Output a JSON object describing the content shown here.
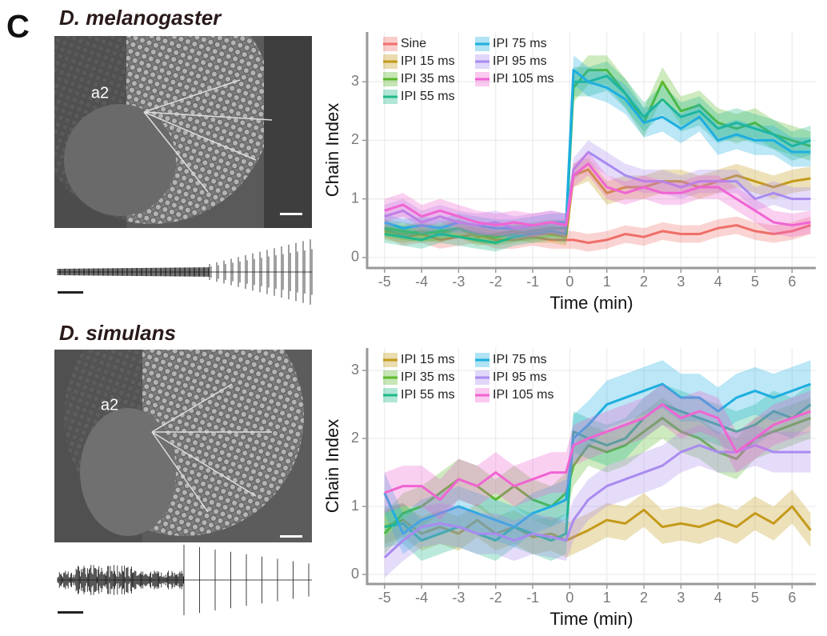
{
  "panel_label": "C",
  "specimens": [
    {
      "name": "D. melanogaster",
      "antenna_label": "a2"
    },
    {
      "name": "D. simulans",
      "antenna_label": "a2"
    }
  ],
  "chart_data": [
    {
      "type": "line",
      "xlabel": "Time (min)",
      "ylabel": "Chain Index",
      "grid": true,
      "legend": "top-left",
      "xlim": [
        -5.47,
        6.64
      ],
      "ylim": [
        -0.18,
        3.85
      ],
      "xticks": [
        -5,
        -4,
        -3,
        -2,
        -1,
        0,
        1,
        2,
        3,
        4,
        5,
        6
      ],
      "yticks": [
        0,
        1,
        2,
        3
      ],
      "x": [
        -5,
        -4.5,
        -4,
        -3.5,
        -3,
        -2.5,
        -2,
        -1.5,
        -1,
        -0.5,
        -0.1,
        0.1,
        0.5,
        1,
        1.5,
        2,
        2.5,
        3,
        3.5,
        4,
        4.5,
        5,
        5.5,
        6,
        6.5
      ],
      "series": [
        {
          "name": "Sine",
          "color": "#ef6f6a",
          "values": [
            0.5,
            0.35,
            0.4,
            0.3,
            0.35,
            0.4,
            0.3,
            0.3,
            0.35,
            0.3,
            0.3,
            0.3,
            0.25,
            0.3,
            0.4,
            0.35,
            0.45,
            0.4,
            0.4,
            0.5,
            0.55,
            0.45,
            0.4,
            0.45,
            0.55
          ],
          "errors": [
            0.15,
            0.15,
            0.15,
            0.15,
            0.15,
            0.15,
            0.15,
            0.15,
            0.15,
            0.15,
            0.15,
            0.15,
            0.15,
            0.15,
            0.15,
            0.15,
            0.15,
            0.15,
            0.15,
            0.15,
            0.15,
            0.15,
            0.15,
            0.15,
            0.15
          ]
        },
        {
          "name": "IPI 15 ms",
          "color": "#c49a1a",
          "values": [
            0.45,
            0.4,
            0.45,
            0.4,
            0.5,
            0.35,
            0.4,
            0.45,
            0.4,
            0.4,
            0.35,
            1.4,
            1.5,
            1.1,
            1.2,
            1.2,
            1.3,
            1.3,
            1.2,
            1.3,
            1.4,
            1.3,
            1.2,
            1.3,
            1.35
          ],
          "errors": [
            0.15,
            0.15,
            0.15,
            0.15,
            0.15,
            0.15,
            0.15,
            0.15,
            0.15,
            0.15,
            0.15,
            0.2,
            0.2,
            0.2,
            0.2,
            0.2,
            0.2,
            0.2,
            0.2,
            0.2,
            0.2,
            0.2,
            0.2,
            0.2,
            0.2
          ]
        },
        {
          "name": "IPI 35 ms",
          "color": "#5cb82a",
          "values": [
            0.5,
            0.45,
            0.4,
            0.45,
            0.5,
            0.4,
            0.35,
            0.4,
            0.45,
            0.5,
            0.5,
            2.9,
            3.2,
            3.2,
            2.8,
            2.3,
            3.0,
            2.5,
            2.6,
            2.3,
            2.2,
            2.3,
            2.1,
            2.0,
            1.9
          ],
          "errors": [
            0.15,
            0.15,
            0.15,
            0.15,
            0.15,
            0.15,
            0.15,
            0.15,
            0.15,
            0.15,
            0.15,
            0.25,
            0.25,
            0.25,
            0.25,
            0.25,
            0.25,
            0.25,
            0.25,
            0.25,
            0.25,
            0.25,
            0.25,
            0.25,
            0.25
          ]
        },
        {
          "name": "IPI 55 ms",
          "color": "#1fb88a",
          "values": [
            0.4,
            0.35,
            0.3,
            0.4,
            0.35,
            0.3,
            0.25,
            0.35,
            0.4,
            0.45,
            0.4,
            3.0,
            3.0,
            3.1,
            2.8,
            2.4,
            2.7,
            2.4,
            2.5,
            2.2,
            2.3,
            2.2,
            2.1,
            1.9,
            2.0
          ],
          "errors": [
            0.15,
            0.15,
            0.15,
            0.15,
            0.15,
            0.15,
            0.15,
            0.15,
            0.15,
            0.15,
            0.15,
            0.25,
            0.25,
            0.25,
            0.25,
            0.25,
            0.25,
            0.25,
            0.25,
            0.25,
            0.25,
            0.25,
            0.25,
            0.25,
            0.25
          ]
        },
        {
          "name": "IPI 75 ms",
          "color": "#1eaee0",
          "values": [
            0.6,
            0.5,
            0.55,
            0.5,
            0.6,
            0.55,
            0.5,
            0.5,
            0.55,
            0.6,
            0.6,
            3.2,
            3.0,
            2.9,
            2.7,
            2.3,
            2.4,
            2.2,
            2.4,
            2.0,
            2.1,
            2.0,
            2.0,
            1.8,
            1.8
          ],
          "errors": [
            0.15,
            0.15,
            0.15,
            0.15,
            0.15,
            0.15,
            0.15,
            0.15,
            0.15,
            0.15,
            0.15,
            0.25,
            0.25,
            0.25,
            0.25,
            0.25,
            0.25,
            0.25,
            0.25,
            0.25,
            0.25,
            0.25,
            0.25,
            0.25,
            0.25
          ]
        },
        {
          "name": "IPI 95 ms",
          "color": "#a98bf0",
          "values": [
            0.7,
            0.8,
            0.6,
            0.7,
            0.6,
            0.55,
            0.6,
            0.5,
            0.55,
            0.6,
            0.55,
            1.5,
            1.8,
            1.6,
            1.4,
            1.3,
            1.3,
            1.2,
            1.3,
            1.3,
            1.3,
            1.0,
            1.1,
            1.0,
            1.0
          ],
          "errors": [
            0.2,
            0.2,
            0.2,
            0.2,
            0.2,
            0.2,
            0.2,
            0.2,
            0.2,
            0.2,
            0.2,
            0.2,
            0.2,
            0.2,
            0.2,
            0.2,
            0.2,
            0.2,
            0.2,
            0.2,
            0.2,
            0.2,
            0.2,
            0.2,
            0.2
          ]
        },
        {
          "name": "IPI 105 ms",
          "color": "#f064d2",
          "values": [
            0.8,
            0.9,
            0.7,
            0.8,
            0.7,
            0.6,
            0.55,
            0.6,
            0.55,
            0.6,
            0.55,
            1.4,
            1.6,
            1.2,
            1.1,
            1.2,
            1.1,
            1.1,
            1.2,
            1.2,
            1.0,
            0.8,
            0.6,
            0.55,
            0.6
          ],
          "errors": [
            0.2,
            0.2,
            0.2,
            0.2,
            0.2,
            0.2,
            0.2,
            0.2,
            0.2,
            0.2,
            0.2,
            0.2,
            0.2,
            0.2,
            0.2,
            0.2,
            0.2,
            0.2,
            0.2,
            0.2,
            0.2,
            0.2,
            0.2,
            0.2,
            0.2
          ]
        }
      ]
    },
    {
      "type": "line",
      "xlabel": "Time (min)",
      "ylabel": "Chain Index",
      "grid": true,
      "legend": "top-left",
      "xlim": [
        -5.47,
        6.64
      ],
      "ylim": [
        -0.14,
        3.33
      ],
      "xticks": [
        -5,
        -4,
        -3,
        -2,
        -1,
        0,
        1,
        2,
        3,
        4,
        5,
        6
      ],
      "yticks": [
        0,
        1,
        2,
        3
      ],
      "x": [
        -5,
        -4.5,
        -4,
        -3.5,
        -3,
        -2.5,
        -2,
        -1.5,
        -1,
        -0.5,
        -0.1,
        0.1,
        0.5,
        1,
        1.5,
        2,
        2.5,
        3,
        3.5,
        4,
        4.5,
        5,
        5.5,
        6,
        6.5
      ],
      "series": [
        {
          "name": "IPI 15 ms",
          "color": "#c49a1a",
          "values": [
            0.7,
            0.8,
            0.6,
            0.7,
            0.6,
            0.8,
            0.6,
            0.7,
            0.55,
            0.6,
            0.5,
            0.55,
            0.65,
            0.8,
            0.75,
            0.95,
            0.7,
            0.75,
            0.7,
            0.8,
            0.7,
            0.9,
            0.75,
            1.0,
            0.65
          ],
          "errors": [
            0.25,
            0.25,
            0.25,
            0.25,
            0.25,
            0.25,
            0.25,
            0.25,
            0.25,
            0.25,
            0.25,
            0.25,
            0.25,
            0.25,
            0.25,
            0.25,
            0.25,
            0.25,
            0.25,
            0.25,
            0.25,
            0.25,
            0.25,
            0.25,
            0.25
          ]
        },
        {
          "name": "IPI 35 ms",
          "color": "#5cb82a",
          "values": [
            0.6,
            0.9,
            1.0,
            1.2,
            1.4,
            1.3,
            1.1,
            1.3,
            1.1,
            1.0,
            1.2,
            1.6,
            1.9,
            1.8,
            1.9,
            2.1,
            2.3,
            2.1,
            2.0,
            1.8,
            1.7,
            2.0,
            2.1,
            2.2,
            2.3
          ],
          "errors": [
            0.3,
            0.3,
            0.3,
            0.3,
            0.3,
            0.3,
            0.3,
            0.3,
            0.3,
            0.3,
            0.3,
            0.3,
            0.3,
            0.3,
            0.3,
            0.3,
            0.3,
            0.3,
            0.3,
            0.3,
            0.3,
            0.3,
            0.3,
            0.3,
            0.3
          ]
        },
        {
          "name": "IPI 55 ms",
          "color": "#1fb88a",
          "values": [
            0.7,
            0.75,
            0.5,
            0.6,
            0.7,
            0.6,
            0.5,
            0.7,
            0.6,
            0.5,
            0.6,
            2.1,
            2.0,
            1.9,
            2.0,
            2.3,
            2.5,
            2.4,
            2.3,
            2.2,
            2.1,
            2.2,
            2.4,
            2.3,
            2.5
          ],
          "errors": [
            0.3,
            0.3,
            0.3,
            0.3,
            0.3,
            0.3,
            0.3,
            0.3,
            0.3,
            0.3,
            0.3,
            0.3,
            0.3,
            0.3,
            0.3,
            0.3,
            0.3,
            0.3,
            0.3,
            0.3,
            0.3,
            0.3,
            0.3,
            0.3,
            0.3
          ]
        },
        {
          "name": "IPI 75 ms",
          "color": "#1eaee0",
          "values": [
            1.2,
            0.6,
            0.8,
            0.9,
            1.0,
            0.9,
            0.8,
            0.7,
            0.9,
            1.0,
            1.1,
            2.0,
            2.2,
            2.5,
            2.6,
            2.7,
            2.8,
            2.6,
            2.6,
            2.4,
            2.6,
            2.7,
            2.6,
            2.7,
            2.8
          ],
          "errors": [
            0.3,
            0.3,
            0.3,
            0.3,
            0.3,
            0.3,
            0.3,
            0.3,
            0.3,
            0.3,
            0.3,
            0.35,
            0.35,
            0.35,
            0.35,
            0.35,
            0.35,
            0.35,
            0.35,
            0.35,
            0.35,
            0.35,
            0.35,
            0.35,
            0.35
          ]
        },
        {
          "name": "IPI 95 ms",
          "color": "#a98bf0",
          "values": [
            0.25,
            0.5,
            0.7,
            0.75,
            0.7,
            0.6,
            0.6,
            0.5,
            0.6,
            0.55,
            0.5,
            0.8,
            1.1,
            1.3,
            1.4,
            1.5,
            1.6,
            1.8,
            1.9,
            1.8,
            1.8,
            1.9,
            1.8,
            1.8,
            1.8
          ],
          "errors": [
            0.3,
            0.3,
            0.3,
            0.3,
            0.3,
            0.3,
            0.3,
            0.3,
            0.3,
            0.3,
            0.3,
            0.3,
            0.3,
            0.3,
            0.3,
            0.3,
            0.3,
            0.3,
            0.3,
            0.3,
            0.3,
            0.3,
            0.3,
            0.3,
            0.3
          ]
        },
        {
          "name": "IPI 105 ms",
          "color": "#f064d2",
          "values": [
            1.2,
            1.3,
            1.3,
            1.1,
            1.4,
            1.3,
            1.5,
            1.3,
            1.4,
            1.5,
            1.5,
            1.9,
            2.0,
            2.1,
            2.2,
            2.3,
            2.5,
            2.3,
            2.4,
            2.3,
            1.8,
            2.0,
            2.2,
            2.3,
            2.4
          ],
          "errors": [
            0.3,
            0.3,
            0.3,
            0.3,
            0.3,
            0.3,
            0.3,
            0.3,
            0.3,
            0.3,
            0.3,
            0.3,
            0.3,
            0.3,
            0.3,
            0.3,
            0.3,
            0.3,
            0.3,
            0.3,
            0.3,
            0.3,
            0.3,
            0.3,
            0.3
          ]
        }
      ]
    }
  ]
}
